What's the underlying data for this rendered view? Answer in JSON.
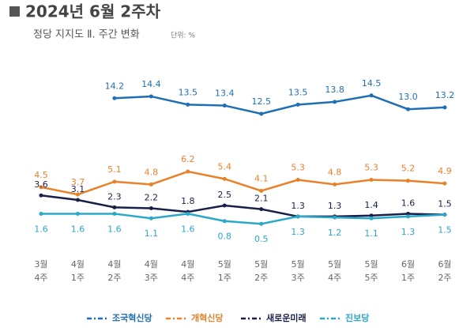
{
  "chart_data": {
    "type": "line",
    "title": "2024년 6월 2주차",
    "subtitle": "정당 지지도 Ⅱ. 주간 변화",
    "unit_note": "단위: %",
    "categories": [
      [
        "3월",
        "4주"
      ],
      [
        "4월",
        "1주"
      ],
      [
        "4월",
        "2주"
      ],
      [
        "4월",
        "3주"
      ],
      [
        "4월",
        "4주"
      ],
      [
        "5월",
        "1주"
      ],
      [
        "5월",
        "2주"
      ],
      [
        "5월",
        "3주"
      ],
      [
        "5월",
        "4주"
      ],
      [
        "5월",
        "5주"
      ],
      [
        "6월",
        "1주"
      ],
      [
        "6월",
        "2주"
      ]
    ],
    "ylim": [
      0,
      15
    ],
    "series": [
      {
        "name": "조국혁신당",
        "color": "#1f6fb5",
        "values": [
          null,
          null,
          14.2,
          14.4,
          13.5,
          13.4,
          12.5,
          13.5,
          13.8,
          14.5,
          13.0,
          13.2
        ],
        "value_labels": [
          null,
          null,
          "14.2",
          "14.4",
          "13.5",
          "13.4",
          "12.5",
          "13.5",
          "13.8",
          "14.5",
          "13.0",
          "13.2"
        ]
      },
      {
        "name": "개혁신당",
        "color": "#e8822a",
        "values": [
          4.5,
          3.7,
          5.1,
          4.8,
          6.2,
          5.4,
          4.1,
          5.3,
          4.8,
          5.3,
          5.2,
          4.9
        ]
      },
      {
        "name": "새로운미래",
        "color": "#1a1f4a",
        "values": [
          3.6,
          3.1,
          2.3,
          2.2,
          1.8,
          2.5,
          2.1,
          1.3,
          1.3,
          1.4,
          1.6,
          1.5
        ]
      },
      {
        "name": "진보당",
        "color": "#2aa8c8",
        "values": [
          1.6,
          1.6,
          1.6,
          1.1,
          1.6,
          0.8,
          0.5,
          1.3,
          1.2,
          1.1,
          1.3,
          1.5
        ]
      }
    ]
  }
}
